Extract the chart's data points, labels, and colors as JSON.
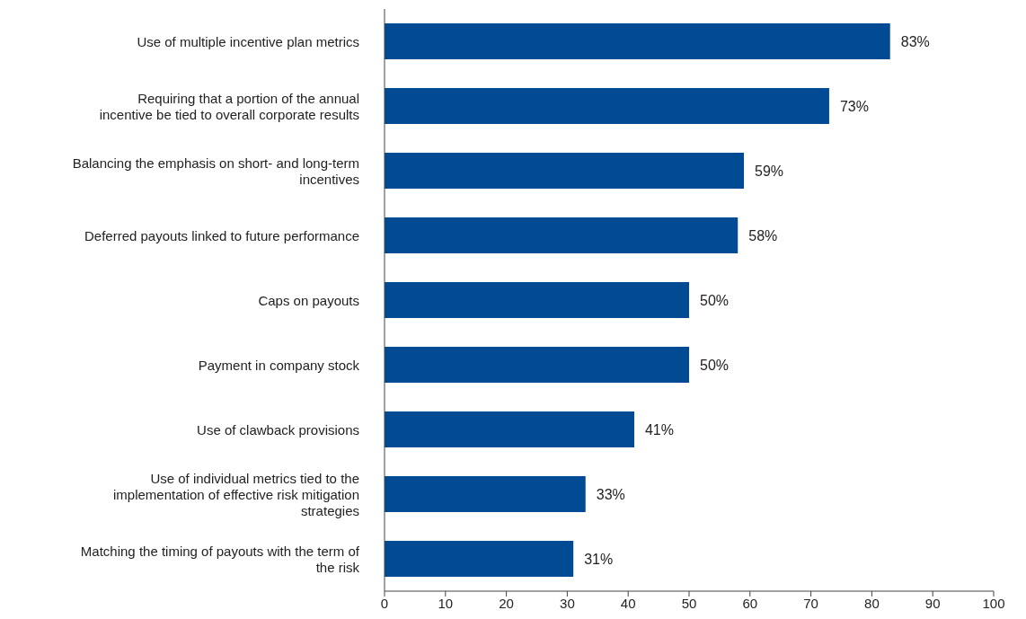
{
  "chart_data": {
    "type": "bar",
    "orientation": "horizontal",
    "categories": [
      "Use of multiple incentive plan metrics",
      "Requiring that a portion of the annual incentive be tied to overall corporate results",
      "Balancing the emphasis on short- and long-term incentives",
      "Deferred payouts linked to future performance",
      "Caps on payouts",
      "Payment in company stock",
      "Use of clawback provisions",
      "Use of individual metrics tied to the implementation of effective risk mitigation strategies",
      "Matching the timing of payouts with the term of the risk"
    ],
    "values": [
      83,
      73,
      59,
      58,
      50,
      50,
      41,
      33,
      31
    ],
    "value_labels": [
      "83%",
      "73%",
      "59%",
      "58%",
      "50%",
      "50%",
      "41%",
      "33%",
      "31%"
    ],
    "color": "#004b93",
    "xlim": [
      0,
      100
    ],
    "xticks": [
      0,
      10,
      20,
      30,
      40,
      50,
      60,
      70,
      80,
      90,
      100
    ],
    "grid": false,
    "legend": false
  }
}
